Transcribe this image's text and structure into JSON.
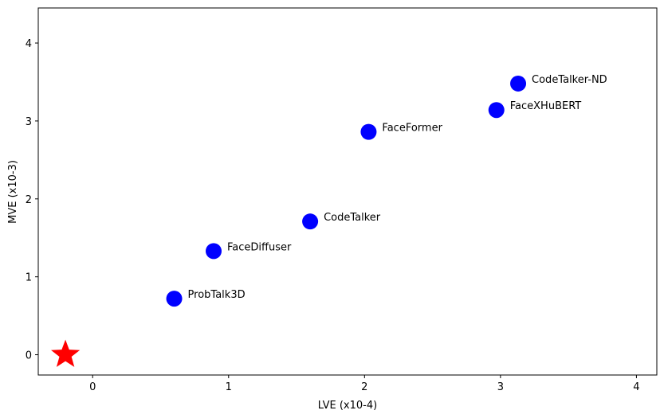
{
  "chart_data": {
    "type": "scatter",
    "title": "",
    "xlabel": "LVE (x10-4)",
    "ylabel": "MVE (x10-3)",
    "xlim": [
      -0.4,
      4.15
    ],
    "ylim": [
      -0.26,
      4.45
    ],
    "xticks": [
      0,
      1,
      2,
      3,
      4
    ],
    "yticks": [
      0,
      1,
      2,
      3,
      4
    ],
    "grid": false,
    "points": [
      {
        "label": "ProbTalk3D",
        "x": 0.6,
        "y": 0.72
      },
      {
        "label": "FaceDiffuser",
        "x": 0.89,
        "y": 1.33
      },
      {
        "label": "CodeTalker",
        "x": 1.6,
        "y": 1.71
      },
      {
        "label": "FaceFormer",
        "x": 2.03,
        "y": 2.86
      },
      {
        "label": "FaceXHuBERT",
        "x": 2.97,
        "y": 3.14
      },
      {
        "label": "CodeTalker-ND",
        "x": 3.13,
        "y": 3.48
      }
    ],
    "reference_point": {
      "x": -0.2,
      "y": 0.0,
      "marker": "star"
    },
    "colors": {
      "points": "#0000ff",
      "reference": "#ff0000"
    }
  }
}
